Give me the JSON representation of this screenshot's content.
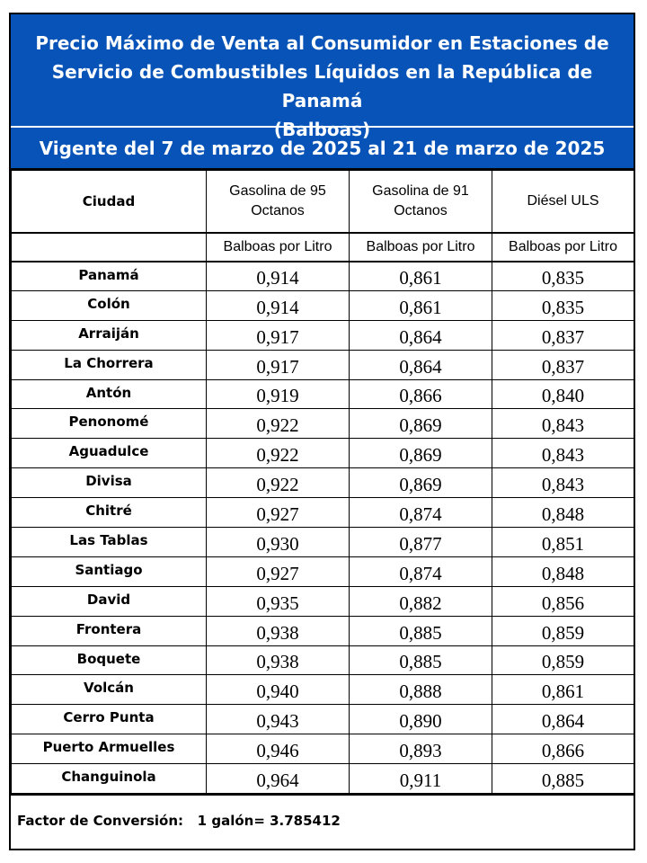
{
  "header": {
    "title_lines": [
      "Precio Máximo de Venta al Consumidor en Estaciones de",
      "Servicio de Combustibles Líquidos en la República de Panamá",
      "(Balboas)"
    ],
    "validity": "Vigente del 7 de marzo de 2025 al 21 de marzo de 2025",
    "banner_color": "#0753b8"
  },
  "table": {
    "columns": {
      "city": "Ciudad",
      "g95_line1": "Gasolina de 95",
      "g95_line2": "Octanos",
      "g91_line1": "Gasolina de 91",
      "g91_line2": "Octanos",
      "diesel": "Diésel ULS"
    },
    "units": {
      "g95": "Balboas por Litro",
      "g91": "Balboas por Litro",
      "diesel": "Balboas por Litro"
    },
    "rows": [
      {
        "city": "Panamá",
        "g95": "0,914",
        "g91": "0,861",
        "diesel": "0,835"
      },
      {
        "city": "Colón",
        "g95": "0,914",
        "g91": "0,861",
        "diesel": "0,835"
      },
      {
        "city": "Arraiján",
        "g95": "0,917",
        "g91": "0,864",
        "diesel": "0,837"
      },
      {
        "city": "La Chorrera",
        "g95": "0,917",
        "g91": "0,864",
        "diesel": "0,837"
      },
      {
        "city": "Antón",
        "g95": "0,919",
        "g91": "0,866",
        "diesel": "0,840"
      },
      {
        "city": "Penonomé",
        "g95": "0,922",
        "g91": "0,869",
        "diesel": "0,843"
      },
      {
        "city": "Aguadulce",
        "g95": "0,922",
        "g91": "0,869",
        "diesel": "0,843"
      },
      {
        "city": "Divisa",
        "g95": "0,922",
        "g91": "0,869",
        "diesel": "0,843"
      },
      {
        "city": "Chitré",
        "g95": "0,927",
        "g91": "0,874",
        "diesel": "0,848"
      },
      {
        "city": "Las Tablas",
        "g95": "0,930",
        "g91": "0,877",
        "diesel": "0,851"
      },
      {
        "city": "Santiago",
        "g95": "0,927",
        "g91": "0,874",
        "diesel": "0,848"
      },
      {
        "city": "David",
        "g95": "0,935",
        "g91": "0,882",
        "diesel": "0,856"
      },
      {
        "city": "Frontera",
        "g95": "0,938",
        "g91": "0,885",
        "diesel": "0,859"
      },
      {
        "city": "Boquete",
        "g95": "0,938",
        "g91": "0,885",
        "diesel": "0,859"
      },
      {
        "city": "Volcán",
        "g95": "0,940",
        "g91": "0,888",
        "diesel": "0,861"
      },
      {
        "city": "Cerro Punta",
        "g95": "0,943",
        "g91": "0,890",
        "diesel": "0,864"
      },
      {
        "city": "Puerto Armuelles",
        "g95": "0,946",
        "g91": "0,893",
        "diesel": "0,866"
      },
      {
        "city": "Changuinola",
        "g95": "0,964",
        "g91": "0,911",
        "diesel": "0,885"
      }
    ]
  },
  "footer": {
    "conversion": "Factor de Conversión:   1 galón= 3.785412"
  }
}
